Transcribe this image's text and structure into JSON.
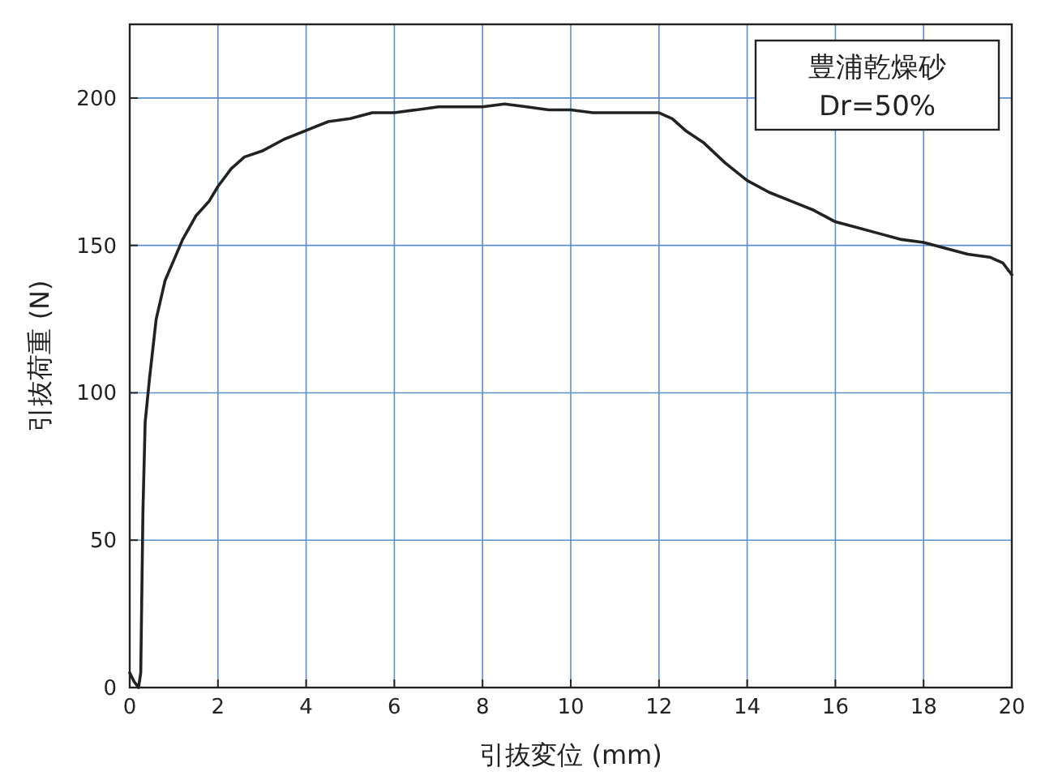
{
  "chart_data": {
    "type": "line",
    "xlabel": "引抜変位 (mm)",
    "ylabel": "引抜荷重 (N)",
    "annotations": [
      "豊浦乾燥砂",
      "Dr=50%"
    ],
    "xlim": [
      0,
      20
    ],
    "xticks": [
      0,
      2,
      4,
      6,
      8,
      10,
      12,
      14,
      16,
      18,
      20
    ],
    "ylim": [
      0,
      225
    ],
    "yticks": [
      0,
      50,
      100,
      150,
      200
    ],
    "grid": true,
    "series": [
      {
        "color": "#222222",
        "x": [
          0,
          0.1,
          0.2,
          0.25,
          0.3,
          0.35,
          0.45,
          0.6,
          0.8,
          1,
          1.2,
          1.5,
          1.8,
          2,
          2.3,
          2.6,
          3,
          3.5,
          4,
          4.5,
          5,
          5.5,
          6,
          6.5,
          7,
          7.5,
          8,
          8.5,
          9,
          9.5,
          10,
          10.5,
          11,
          11.5,
          12,
          12.3,
          12.6,
          13,
          13.5,
          14,
          14.5,
          15,
          15.5,
          16,
          16.5,
          17,
          17.5,
          18,
          18.5,
          19,
          19.5,
          19.8,
          20
        ],
        "values": [
          5,
          2,
          0,
          5,
          60,
          90,
          105,
          125,
          138,
          145,
          152,
          160,
          165,
          170,
          176,
          180,
          182,
          186,
          189,
          192,
          193,
          195,
          195,
          196,
          197,
          197,
          197,
          198,
          197,
          196,
          196,
          195,
          195,
          195,
          195,
          193,
          189,
          185,
          178,
          172,
          168,
          165,
          162,
          158,
          156,
          154,
          152,
          151,
          149,
          147,
          146,
          144,
          140
        ]
      }
    ]
  }
}
